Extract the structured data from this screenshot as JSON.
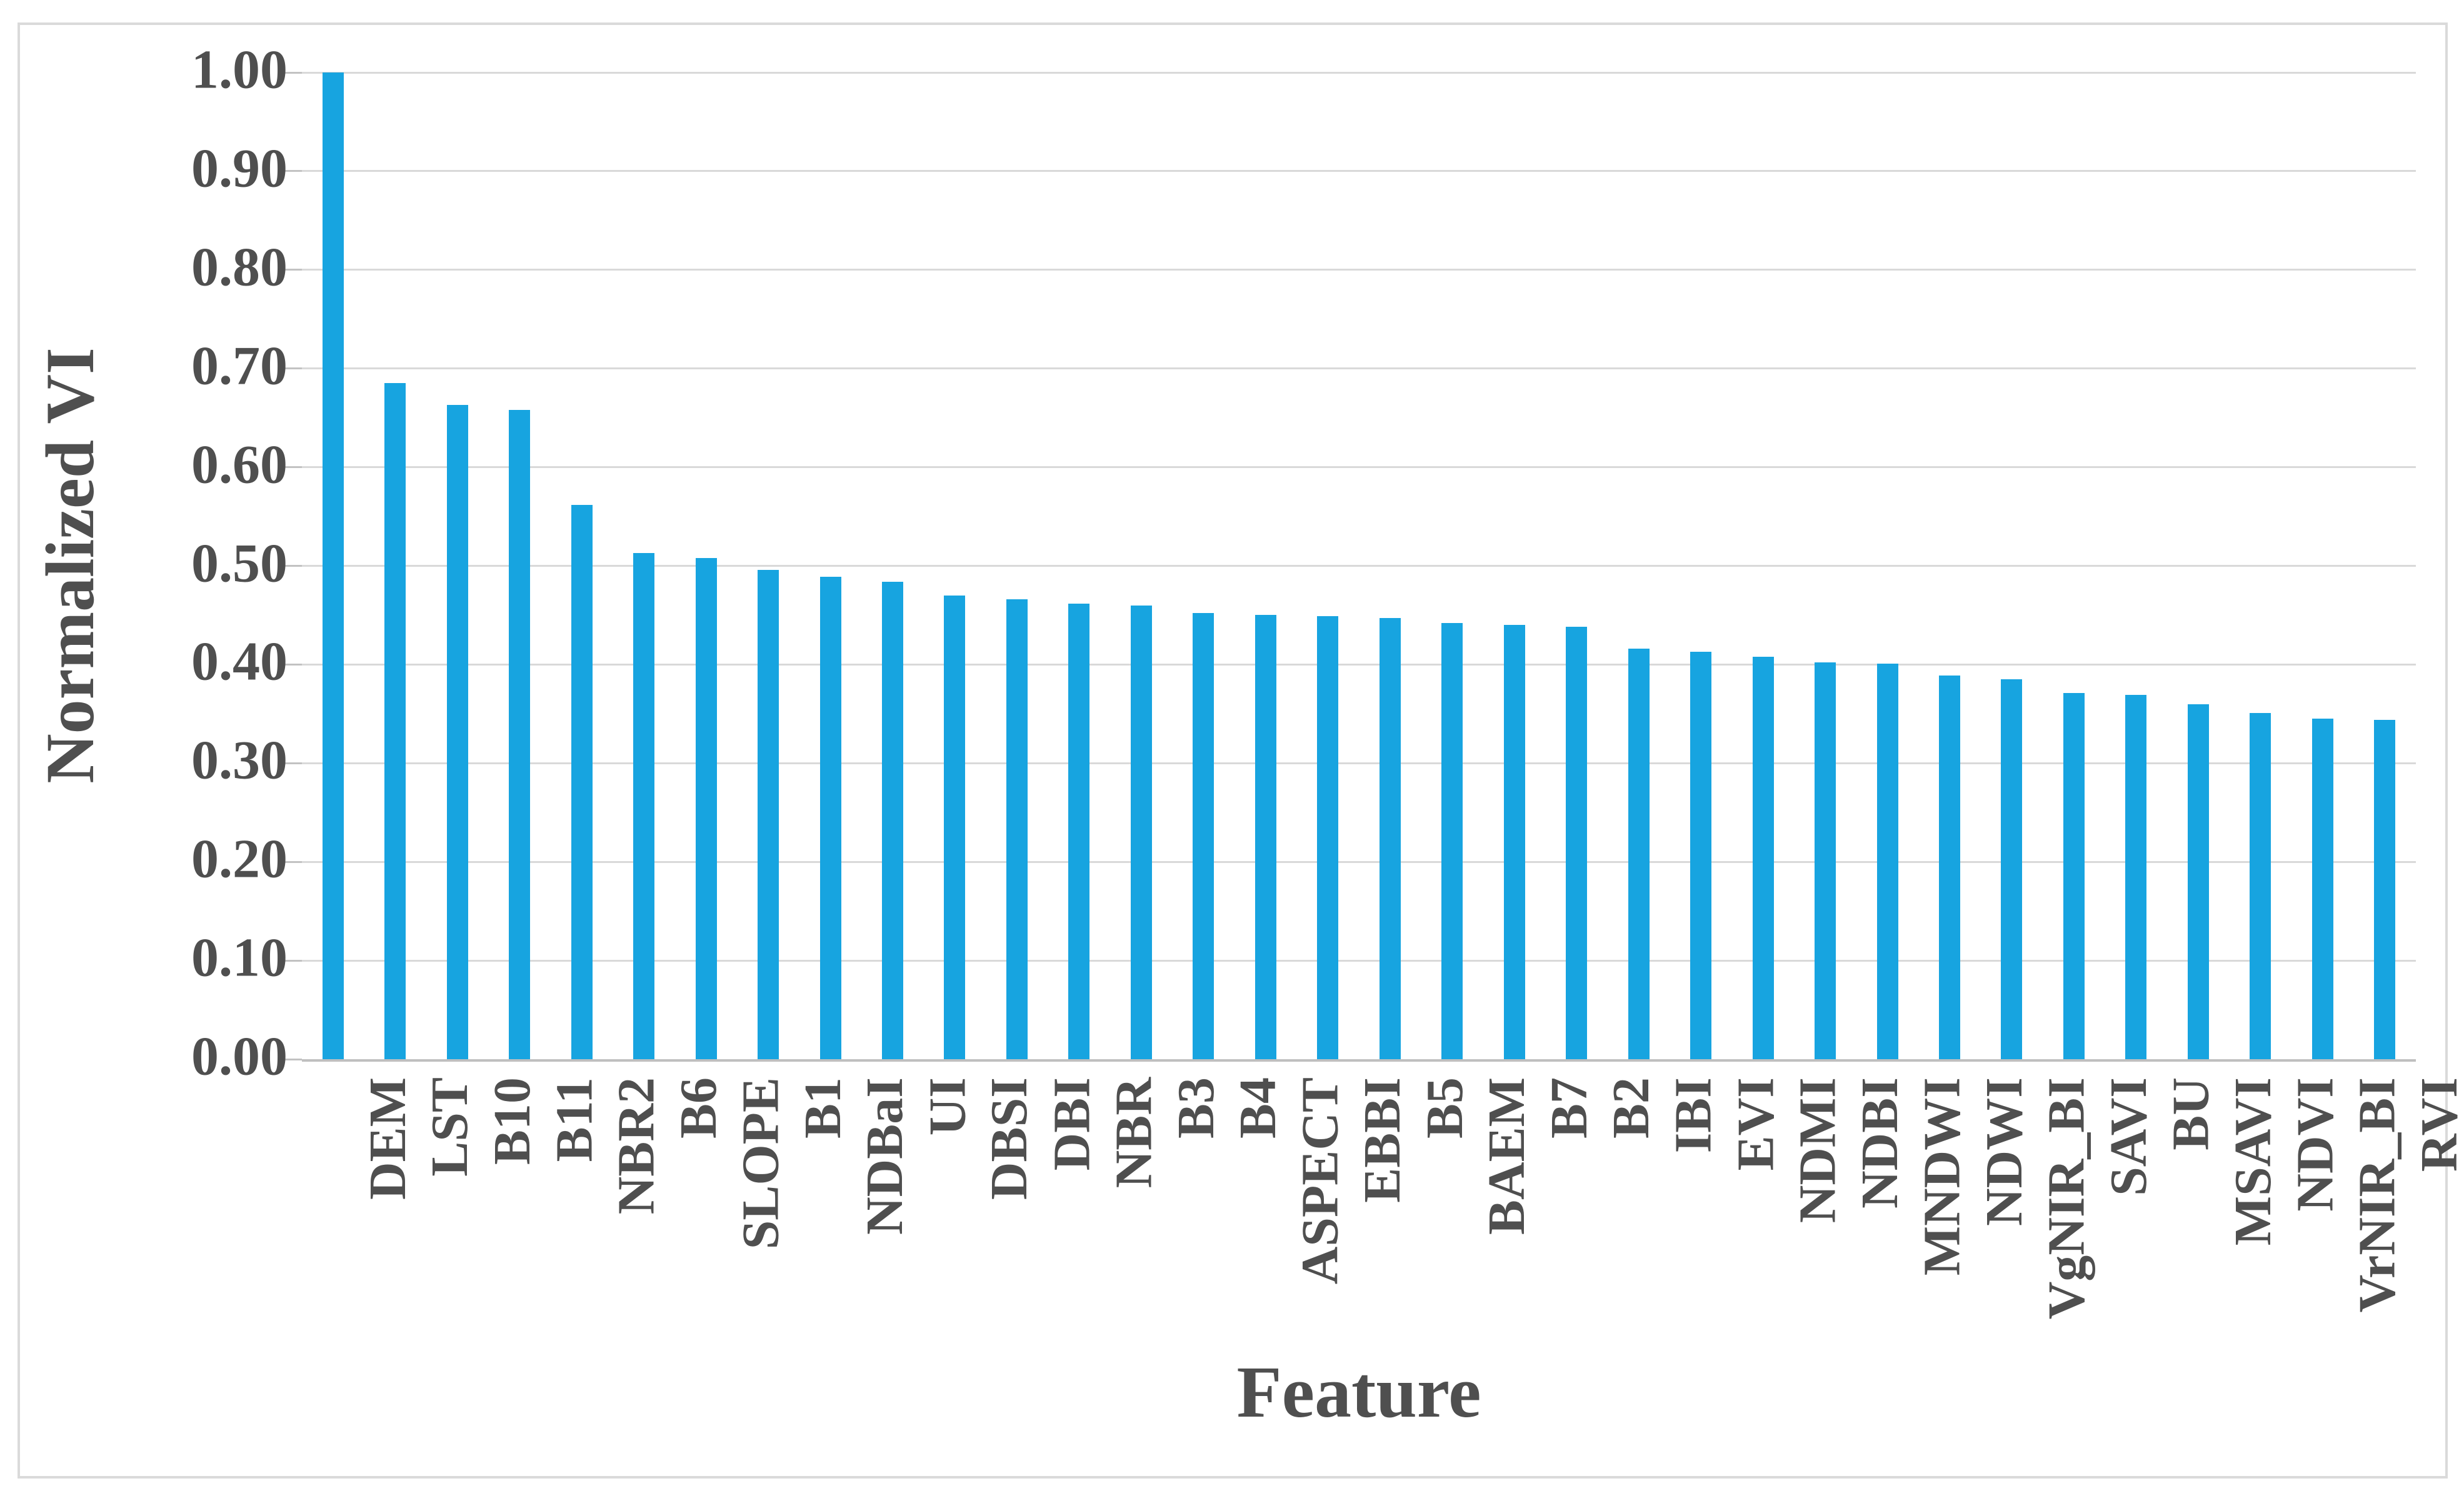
{
  "chart_data": {
    "type": "bar",
    "title": "",
    "xlabel": "Feature",
    "ylabel": "Normalized VI",
    "ylim": [
      0,
      1.0
    ],
    "ytick_step": 0.1,
    "ytick_labels": [
      "0.00",
      "0.10",
      "0.20",
      "0.30",
      "0.40",
      "0.50",
      "0.60",
      "0.70",
      "0.80",
      "0.90",
      "1.00"
    ],
    "grid": true,
    "legend": "none",
    "bar_color": "#17a4e0",
    "gridline_color": "#d9d9d9",
    "axis_line_color": "#bfbfbf",
    "text_color": "#4f4f4f",
    "figure_border_color": "#dadada",
    "categories": [
      "DEM",
      "LST",
      "B10",
      "B11",
      "NBR2",
      "B6",
      "SLOPE",
      "B1",
      "NDBaI",
      "UI",
      "DBSI",
      "DBI",
      "NBR",
      "B3",
      "B4",
      "ASPECT",
      "EBBI",
      "B5",
      "BAEM",
      "B7",
      "B2",
      "IBI",
      "EVI",
      "NDMI",
      "NDBI",
      "MNDWI",
      "NDWI",
      "VgNIR_BI",
      "SAVI",
      "BU",
      "MSAVI",
      "NDVI",
      "VrNIR_BI",
      "RVI"
    ],
    "values": [
      1.0,
      0.685,
      0.663,
      0.658,
      0.562,
      0.513,
      0.508,
      0.496,
      0.489,
      0.484,
      0.47,
      0.466,
      0.462,
      0.46,
      0.452,
      0.45,
      0.449,
      0.447,
      0.442,
      0.44,
      0.438,
      0.416,
      0.413,
      0.408,
      0.402,
      0.401,
      0.389,
      0.385,
      0.371,
      0.369,
      0.36,
      0.351,
      0.345,
      0.344
    ]
  }
}
